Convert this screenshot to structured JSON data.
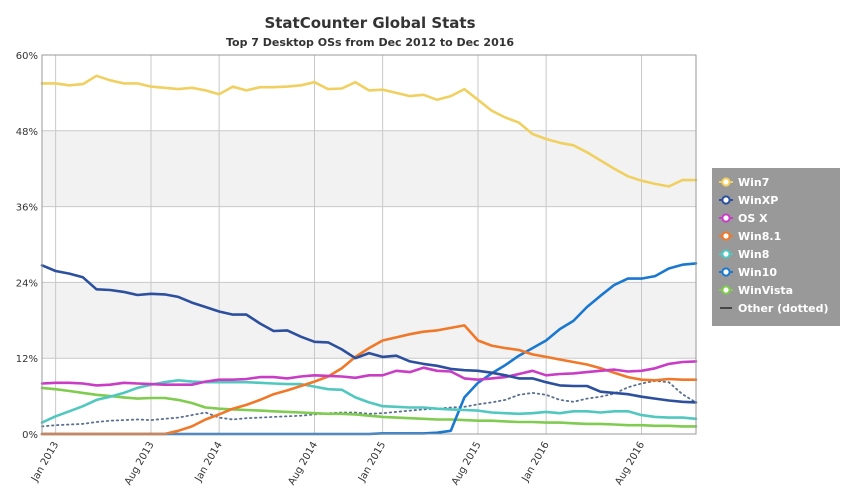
{
  "chart_data": {
    "type": "line",
    "title": "StatCounter Global Stats",
    "subtitle": "Top 7 Desktop OSs from Dec 2012 to Dec 2016",
    "y_ticks": [
      "0%",
      "12%",
      "24%",
      "36%",
      "48%",
      "60%"
    ],
    "ylim": [
      0,
      60
    ],
    "x_tick_labels": [
      {
        "label": "Jan 2013",
        "month": 1
      },
      {
        "label": "Aug 2013",
        "month": 8
      },
      {
        "label": "Jan 2014",
        "month": 13
      },
      {
        "label": "Aug 2014",
        "month": 20
      },
      {
        "label": "Jan 2015",
        "month": 25
      },
      {
        "label": "Aug 2015",
        "month": 32
      },
      {
        "label": "Jan 2016",
        "month": 37
      },
      {
        "label": "Aug 2016",
        "month": 44
      }
    ],
    "x_range_months": [
      0,
      48
    ],
    "legend_position": "right",
    "series": [
      {
        "name": "Win7",
        "color": "#f0d060",
        "values": [
          55.5,
          55.5,
          55.2,
          55.4,
          56.7,
          56.0,
          55.5,
          55.5,
          55.0,
          54.8,
          54.6,
          54.8,
          54.4,
          53.8,
          55.0,
          54.4,
          54.9,
          54.9,
          55.0,
          55.2,
          55.7,
          54.6,
          54.7,
          55.7,
          54.4,
          54.5,
          54.0,
          53.5,
          53.7,
          52.9,
          53.5,
          54.6,
          52.9,
          51.2,
          50.1,
          49.3,
          47.5,
          46.7,
          46.1,
          45.7,
          44.6,
          43.3,
          42.0,
          40.8,
          40.1,
          39.6,
          39.2,
          40.2,
          40.2
        ]
      },
      {
        "name": "WinXP",
        "color": "#2c4f9e",
        "values": [
          26.7,
          25.8,
          25.4,
          24.8,
          22.9,
          22.8,
          22.5,
          22.0,
          22.2,
          22.1,
          21.7,
          20.8,
          20.1,
          19.4,
          18.9,
          18.9,
          17.5,
          16.3,
          16.4,
          15.4,
          14.6,
          14.5,
          13.4,
          12.0,
          12.8,
          12.2,
          12.4,
          11.5,
          11.1,
          10.8,
          10.3,
          10.1,
          10.0,
          9.7,
          9.3,
          8.8,
          8.8,
          8.2,
          7.7,
          7.6,
          7.6,
          6.7,
          6.5,
          6.3,
          5.9,
          5.6,
          5.3,
          5.1,
          5.0
        ]
      },
      {
        "name": "OS X",
        "color": "#c93cc6",
        "values": [
          8.0,
          8.1,
          8.1,
          8.0,
          7.7,
          7.8,
          8.1,
          8.0,
          7.9,
          7.8,
          7.8,
          7.8,
          8.3,
          8.6,
          8.6,
          8.7,
          9.0,
          9.0,
          8.8,
          9.1,
          9.3,
          9.2,
          9.1,
          8.9,
          9.3,
          9.3,
          10.0,
          9.8,
          10.5,
          10.0,
          9.9,
          8.8,
          8.6,
          8.8,
          9.0,
          9.5,
          10.0,
          9.3,
          9.5,
          9.6,
          9.8,
          10.0,
          10.2,
          9.9,
          10.0,
          10.4,
          11.1,
          11.4,
          11.5
        ]
      },
      {
        "name": "Win8.1",
        "color": "#f07828",
        "values": [
          0,
          0,
          0,
          0,
          0,
          0,
          0,
          0,
          0,
          0,
          0.5,
          1.2,
          2.3,
          3.1,
          4.0,
          4.6,
          5.4,
          6.3,
          6.9,
          7.6,
          8.3,
          9.1,
          10.4,
          12.2,
          13.6,
          14.8,
          15.3,
          15.8,
          16.2,
          16.4,
          16.8,
          17.2,
          14.8,
          14.0,
          13.6,
          13.3,
          12.6,
          12.2,
          11.8,
          11.4,
          11.0,
          10.4,
          9.7,
          9.0,
          8.6,
          8.5,
          8.7,
          8.6,
          8.6
        ]
      },
      {
        "name": "Win8",
        "color": "#50c8c0",
        "values": [
          1.8,
          2.8,
          3.6,
          4.4,
          5.4,
          5.9,
          6.5,
          7.3,
          7.8,
          8.2,
          8.5,
          8.3,
          8.2,
          8.2,
          8.2,
          8.2,
          8.1,
          8.0,
          7.9,
          7.9,
          7.5,
          7.1,
          7.0,
          5.8,
          5.0,
          4.4,
          4.3,
          4.2,
          4.2,
          4.0,
          3.9,
          3.8,
          3.7,
          3.4,
          3.3,
          3.2,
          3.3,
          3.5,
          3.3,
          3.6,
          3.6,
          3.4,
          3.6,
          3.6,
          3.0,
          2.7,
          2.6,
          2.6,
          2.4
        ]
      },
      {
        "name": "Win10",
        "color": "#1a78d0",
        "values": [
          0,
          0,
          0,
          0,
          0,
          0,
          0,
          0,
          0,
          0,
          0,
          0,
          0,
          0,
          0,
          0,
          0,
          0,
          0,
          0,
          0,
          0,
          0,
          0,
          0,
          0.1,
          0.1,
          0.1,
          0.1,
          0.2,
          0.5,
          5.8,
          8.1,
          9.6,
          10.9,
          12.4,
          13.6,
          14.8,
          16.6,
          17.9,
          20.1,
          21.9,
          23.6,
          24.6,
          24.6,
          25.0,
          26.2,
          26.8,
          27.0
        ]
      },
      {
        "name": "WinVista",
        "color": "#80cc50",
        "values": [
          7.3,
          7.1,
          6.8,
          6.5,
          6.2,
          6.0,
          5.8,
          5.6,
          5.7,
          5.7,
          5.4,
          4.9,
          4.2,
          4.0,
          3.9,
          3.8,
          3.7,
          3.6,
          3.5,
          3.4,
          3.3,
          3.2,
          3.2,
          3.1,
          2.9,
          2.7,
          2.6,
          2.5,
          2.4,
          2.3,
          2.3,
          2.2,
          2.1,
          2.1,
          2.0,
          1.9,
          1.9,
          1.8,
          1.8,
          1.7,
          1.6,
          1.6,
          1.5,
          1.4,
          1.4,
          1.3,
          1.3,
          1.2,
          1.2
        ]
      },
      {
        "name": "Other (dotted)",
        "color": "#5a7090",
        "dotted": true,
        "values": [
          1.2,
          1.4,
          1.5,
          1.6,
          1.9,
          2.1,
          2.2,
          2.3,
          2.2,
          2.4,
          2.6,
          3.0,
          3.4,
          2.6,
          2.3,
          2.5,
          2.6,
          2.7,
          2.8,
          2.9,
          3.1,
          3.3,
          3.4,
          3.4,
          3.2,
          3.3,
          3.5,
          3.7,
          3.9,
          4.0,
          4.2,
          4.3,
          4.7,
          5.0,
          5.4,
          6.2,
          6.5,
          6.2,
          5.4,
          5.1,
          5.6,
          5.9,
          6.4,
          7.4,
          8.0,
          8.4,
          8.2,
          6.3,
          5.0
        ]
      }
    ]
  }
}
